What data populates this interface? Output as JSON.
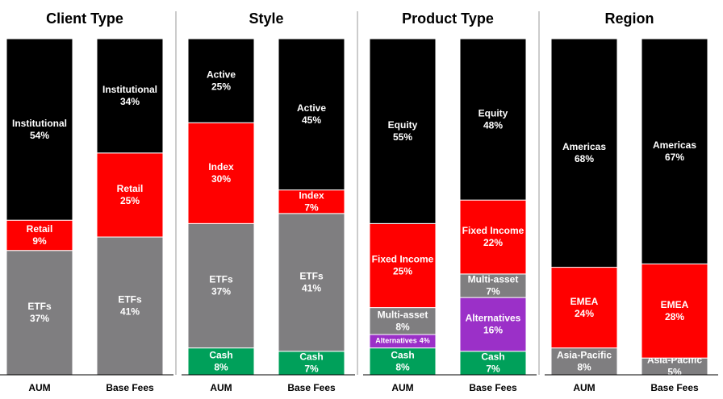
{
  "chart_data": [
    {
      "type": "stacked-bar",
      "title": "Client Type",
      "categories": [
        "AUM",
        "Base Fees"
      ],
      "series": [
        {
          "name": "ETFs",
          "color": "#7f7e80",
          "values": [
            37,
            41
          ],
          "value_labels": [
            "37%",
            "41%"
          ]
        },
        {
          "name": "Retail",
          "color": "#ff0000",
          "values": [
            9,
            25
          ],
          "value_labels": [
            "9%",
            "25%"
          ]
        },
        {
          "name": "Institutional",
          "color": "#000000",
          "values": [
            54,
            34
          ],
          "value_labels": [
            "54%",
            "34%"
          ]
        }
      ]
    },
    {
      "type": "stacked-bar",
      "title": "Style",
      "categories": [
        "AUM",
        "Base Fees"
      ],
      "series": [
        {
          "name": "Cash",
          "color": "#00a05a",
          "values": [
            8,
            7
          ],
          "value_labels": [
            "8%",
            "7%"
          ]
        },
        {
          "name": "ETFs",
          "color": "#7f7e80",
          "values": [
            37,
            41
          ],
          "value_labels": [
            "37%",
            "41%"
          ]
        },
        {
          "name": "Index",
          "color": "#ff0000",
          "values": [
            30,
            7
          ],
          "value_labels": [
            "30%",
            "7%"
          ]
        },
        {
          "name": "Active",
          "color": "#000000",
          "values": [
            25,
            45
          ],
          "value_labels": [
            "25%",
            "45%"
          ]
        }
      ]
    },
    {
      "type": "stacked-bar",
      "title": "Product Type",
      "categories": [
        "AUM",
        "Base Fees"
      ],
      "series": [
        {
          "name": "Cash",
          "color": "#00a05a",
          "values": [
            8,
            7
          ],
          "value_labels": [
            "8%",
            "7%"
          ]
        },
        {
          "name": "Alternatives",
          "color": "#9b30c8",
          "values": [
            4,
            16
          ],
          "value_labels": [
            "4%",
            "16%"
          ]
        },
        {
          "name": "Multi-asset",
          "color": "#7f7e80",
          "values": [
            8,
            7
          ],
          "value_labels": [
            "8%",
            "7%"
          ]
        },
        {
          "name": "Fixed Income",
          "color": "#ff0000",
          "values": [
            25,
            22
          ],
          "value_labels": [
            "25%",
            "22%"
          ]
        },
        {
          "name": "Equity",
          "color": "#000000",
          "values": [
            55,
            48
          ],
          "value_labels": [
            "55%",
            "48%"
          ]
        }
      ]
    },
    {
      "type": "stacked-bar",
      "title": "Region",
      "categories": [
        "AUM",
        "Base Fees"
      ],
      "series": [
        {
          "name": "Asia-Pacific",
          "color": "#7f7e80",
          "values": [
            8,
            5
          ],
          "value_labels": [
            "8%",
            "5%"
          ]
        },
        {
          "name": "EMEA",
          "color": "#ff0000",
          "values": [
            24,
            28
          ],
          "value_labels": [
            "24%",
            "28%"
          ]
        },
        {
          "name": "Americas",
          "color": "#000000",
          "values": [
            68,
            67
          ],
          "value_labels": [
            "68%",
            "67%"
          ]
        }
      ]
    }
  ]
}
